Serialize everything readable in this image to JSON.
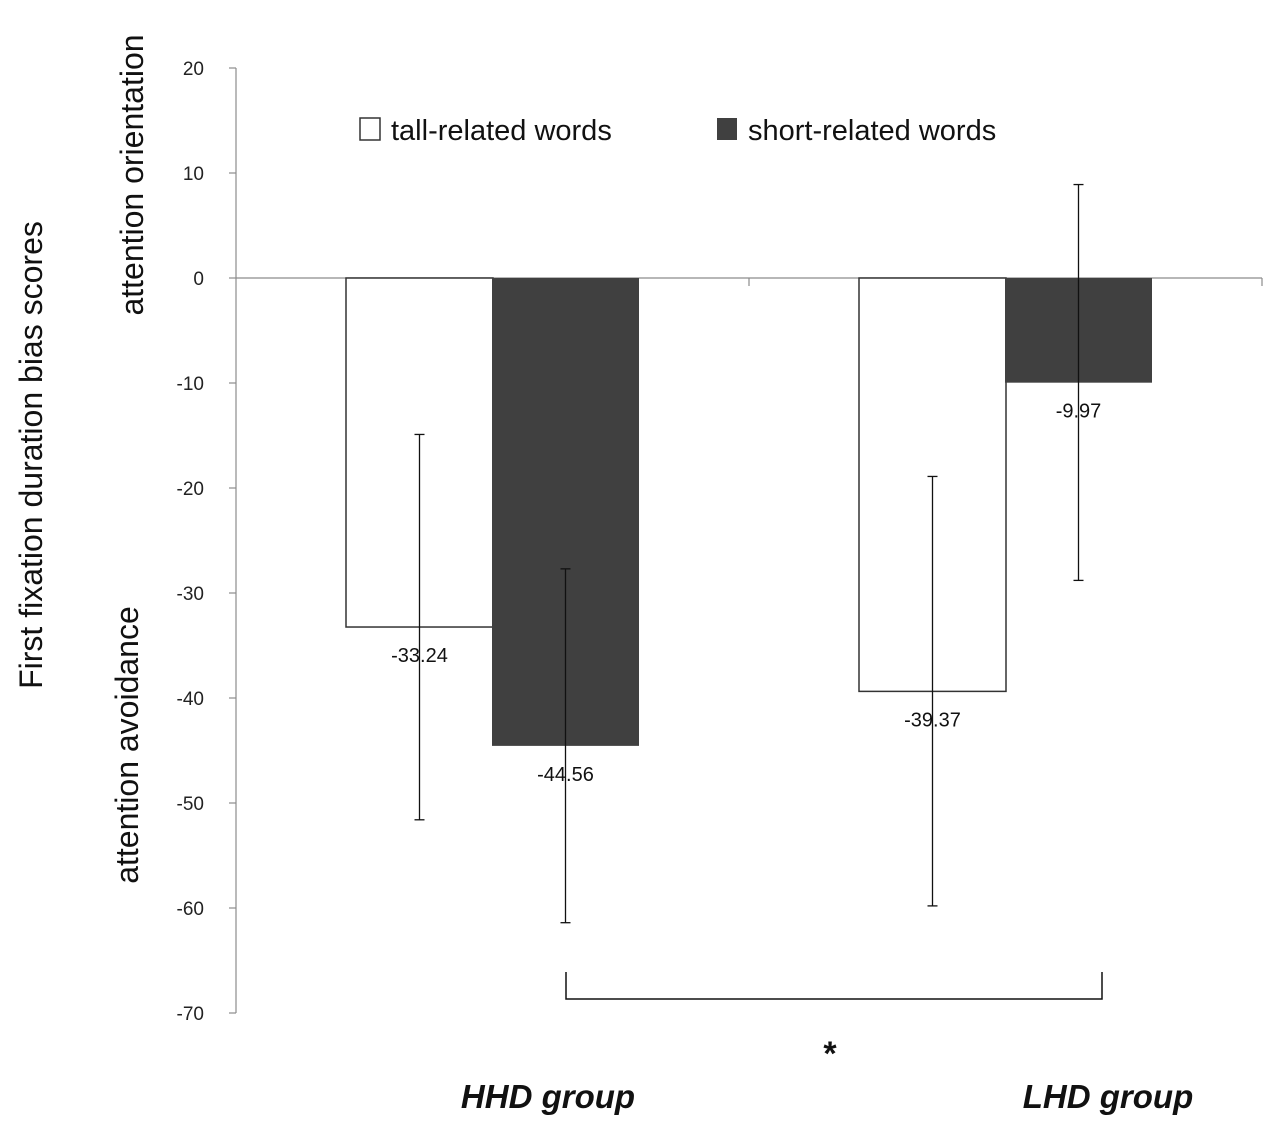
{
  "chart_data": {
    "type": "bar",
    "categories": [
      "HHD group",
      "LHD group"
    ],
    "series": [
      {
        "name": "tall-related words",
        "values": [
          -33.24,
          -39.37
        ],
        "error_low": [
          -51.6,
          -59.8
        ],
        "error_high": [
          -14.9,
          -18.9
        ],
        "color": "#ffffff"
      },
      {
        "name": "short-related words",
        "values": [
          -44.56,
          -9.97
        ],
        "error_low": [
          -61.4,
          -28.8
        ],
        "error_high": [
          -27.7,
          8.9
        ],
        "color": "#404040"
      }
    ],
    "data_labels": [
      [
        "-33.24",
        "-39.37"
      ],
      [
        "-44.56",
        "-9.97"
      ]
    ],
    "yticks": [
      20,
      10,
      0,
      -10,
      -20,
      -30,
      -40,
      -50,
      -60,
      -70
    ],
    "ylim": [
      -70,
      20
    ],
    "ylabel": "First fixation duration bias scores",
    "ylabel_top": "attention orientation",
    "ylabel_bottom": "attention avoidance",
    "significance_marker": "*",
    "legend_position": "top",
    "grid": false
  }
}
